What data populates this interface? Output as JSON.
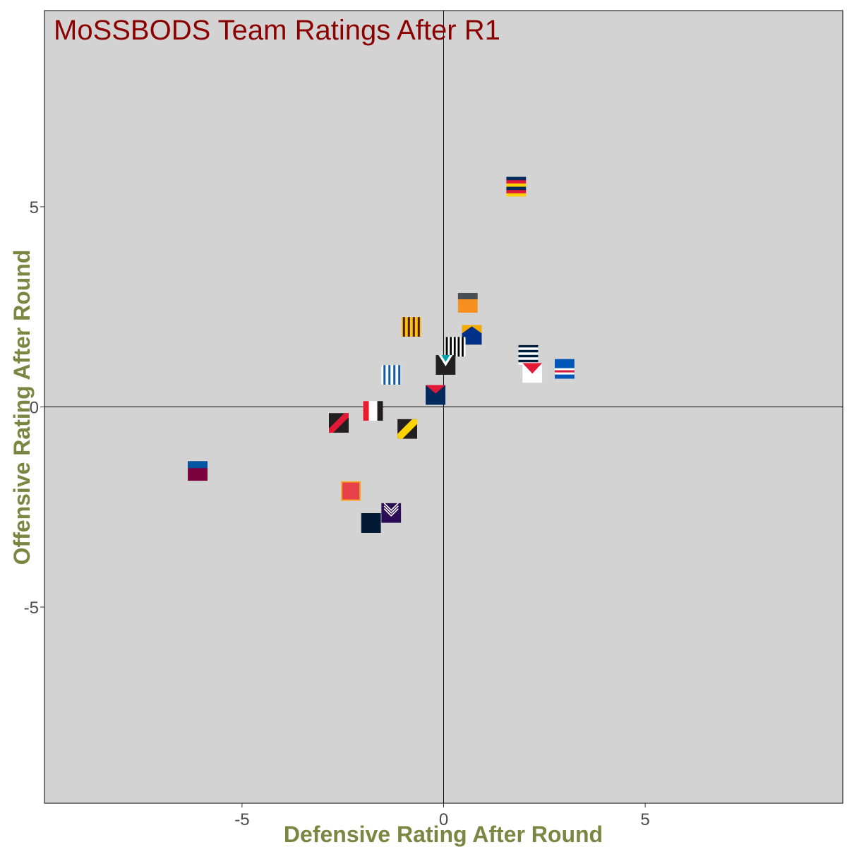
{
  "chart_data": {
    "type": "scatter",
    "title": "MoSSBODS Team Ratings After R1",
    "xlabel": "Defensive Rating After Round",
    "ylabel": "Offensive Rating After Round",
    "xlim": [
      -9.9,
      9.9
    ],
    "ylim": [
      -9.9,
      9.9
    ],
    "xticks": [
      -5,
      0,
      5
    ],
    "yticks": [
      -5,
      0,
      5
    ],
    "xtick_labels": [
      "-5",
      "0",
      "5"
    ],
    "ytick_labels": [
      "-5",
      "0",
      "5"
    ],
    "grid": false,
    "reference_lines": {
      "x": 0,
      "y": 0
    },
    "colors": {
      "panel": "#d3d3d3",
      "title": "#8b0000",
      "axis_title": "#7a8641",
      "tick_label": "#4d4d4d"
    },
    "points": [
      {
        "x": 1.8,
        "y": 5.5,
        "marker": "adelaide-logo"
      },
      {
        "x": 0.6,
        "y": 2.6,
        "marker": "gws-logo"
      },
      {
        "x": -0.8,
        "y": 2.0,
        "marker": "hawthorn-logo"
      },
      {
        "x": 0.7,
        "y": 1.8,
        "marker": "west-coast-logo"
      },
      {
        "x": 0.3,
        "y": 1.5,
        "marker": "collingwood-logo"
      },
      {
        "x": 2.1,
        "y": 1.3,
        "marker": "geelong-logo"
      },
      {
        "x": 3.0,
        "y": 0.95,
        "marker": "western-bulldogs-logo"
      },
      {
        "x": 2.2,
        "y": 0.85,
        "marker": "sydney-logo"
      },
      {
        "x": 0.05,
        "y": 1.05,
        "marker": "port-adelaide-logo"
      },
      {
        "x": -1.3,
        "y": 0.8,
        "marker": "north-melbourne-logo"
      },
      {
        "x": -0.2,
        "y": 0.3,
        "marker": "melbourne-logo"
      },
      {
        "x": -1.75,
        "y": -0.1,
        "marker": "st-kilda-logo"
      },
      {
        "x": -2.6,
        "y": -0.4,
        "marker": "essendon-logo"
      },
      {
        "x": -0.9,
        "y": -0.55,
        "marker": "richmond-logo"
      },
      {
        "x": -6.1,
        "y": -1.6,
        "marker": "brisbane-logo"
      },
      {
        "x": -2.3,
        "y": -2.1,
        "marker": "gold-coast-logo"
      },
      {
        "x": -1.3,
        "y": -2.65,
        "marker": "fremantle-logo"
      },
      {
        "x": -1.8,
        "y": -2.9,
        "marker": "carlton-logo"
      }
    ]
  }
}
